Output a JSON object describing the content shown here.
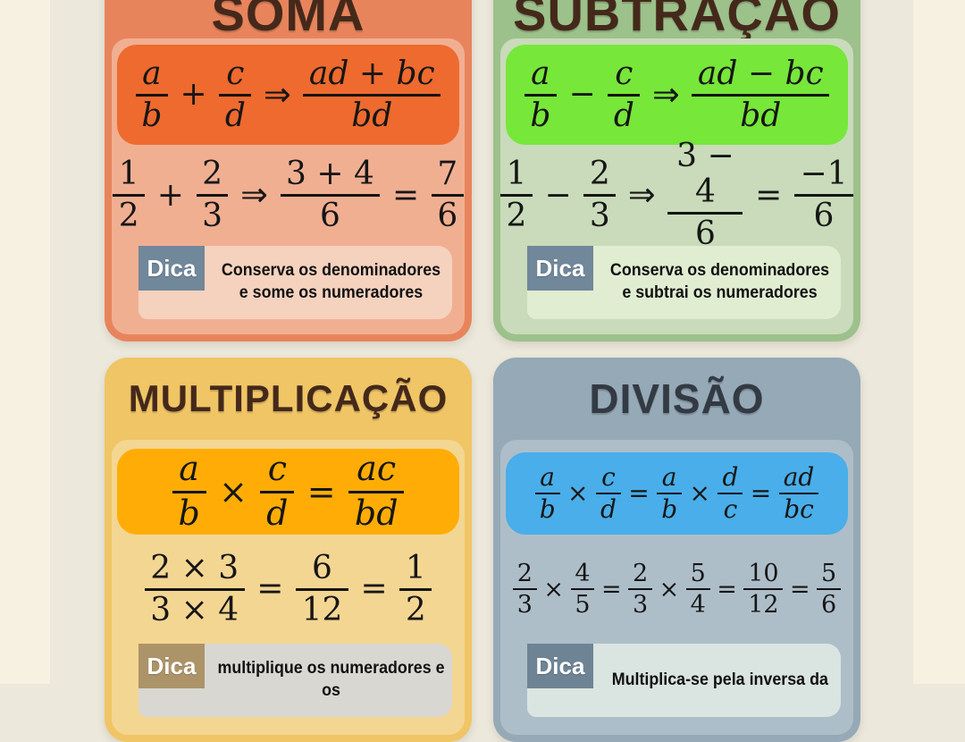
{
  "page": {
    "bg_outer": "#F7F1E1",
    "bg_inner": "#ECE8DB",
    "math_color": "#161616"
  },
  "cards": [
    {
      "title": "SOMA",
      "dica_label": "Dica",
      "dica_text": "Conserva os denominadores e some os numeradores",
      "colors": {
        "header": "#E8845C",
        "body": "#F1AF92",
        "box": "#EE6A2E",
        "panel": "#F5D2BE",
        "badge": "#71879A",
        "title": "#44291B"
      },
      "formula": [
        {
          "t": "frac",
          "n": "a",
          "d": "b",
          "var": true
        },
        {
          "t": "op",
          "v": "+"
        },
        {
          "t": "frac",
          "n": "c",
          "d": "d",
          "var": true
        },
        {
          "t": "arrow"
        },
        {
          "t": "frac",
          "n": "ad + bc",
          "d": "bd",
          "var": true
        }
      ],
      "example": [
        {
          "t": "frac",
          "n": "1",
          "d": "2"
        },
        {
          "t": "op",
          "v": "+"
        },
        {
          "t": "frac",
          "n": "2",
          "d": "3"
        },
        {
          "t": "arrow"
        },
        {
          "t": "frac",
          "n": "3 + 4",
          "d": "6"
        },
        {
          "t": "op",
          "v": "="
        },
        {
          "t": "frac",
          "n": "7",
          "d": "6"
        }
      ]
    },
    {
      "title": "SUBTRAÇÃO",
      "dica_label": "Dica",
      "dica_text": "Conserva os denominadores e subtrai os numeradores",
      "colors": {
        "header": "#9DC18B",
        "body": "#C9DBBA",
        "box": "#77E73A",
        "panel": "#E0EDD1",
        "badge": "#71879A",
        "title": "#44291B"
      },
      "formula": [
        {
          "t": "frac",
          "n": "a",
          "d": "b",
          "var": true
        },
        {
          "t": "op",
          "v": "−"
        },
        {
          "t": "frac",
          "n": "c",
          "d": "d",
          "var": true
        },
        {
          "t": "arrow"
        },
        {
          "t": "frac",
          "n": "ad − bc",
          "d": "bd",
          "var": true
        }
      ],
      "example": [
        {
          "t": "frac",
          "n": "1",
          "d": "2"
        },
        {
          "t": "op",
          "v": "−"
        },
        {
          "t": "frac",
          "n": "2",
          "d": "3"
        },
        {
          "t": "arrow"
        },
        {
          "t": "frac",
          "n": "3 − 4",
          "d": "6"
        },
        {
          "t": "op",
          "v": "="
        },
        {
          "t": "frac",
          "n": "−1",
          "d": "6"
        }
      ]
    },
    {
      "title": "MULTIPLICAÇÃO",
      "dica_label": "Dica",
      "dica_text": "multiplique os numeradores e os",
      "colors": {
        "header": "#F0C565",
        "body": "#F4D693",
        "box": "#FFAD06",
        "panel": "#D8D7D2",
        "badge": "#AC9468",
        "title": "#44291B"
      },
      "formula": [
        {
          "t": "frac",
          "n": "a",
          "d": "b",
          "var": true
        },
        {
          "t": "op",
          "v": "×"
        },
        {
          "t": "frac",
          "n": "c",
          "d": "d",
          "var": true
        },
        {
          "t": "op",
          "v": "="
        },
        {
          "t": "frac",
          "n": "ac",
          "d": "bd",
          "var": true
        }
      ],
      "example": [
        {
          "t": "frac",
          "n": "2 × 3",
          "d": "3 × 4"
        },
        {
          "t": "op",
          "v": "="
        },
        {
          "t": "frac",
          "n": "6",
          "d": "12"
        },
        {
          "t": "op",
          "v": "="
        },
        {
          "t": "frac",
          "n": "1",
          "d": "2"
        }
      ]
    },
    {
      "title": "DIVISÃO",
      "dica_label": "Dica",
      "dica_text": "Multiplica-se pela inversa da",
      "colors": {
        "header": "#95A9B6",
        "body": "#AEBEC9",
        "box": "#49AEE9",
        "panel": "#DAE4E1",
        "badge": "#6E8495",
        "title": "#333A44"
      },
      "formula": [
        {
          "t": "frac",
          "n": "a",
          "d": "b",
          "var": true
        },
        {
          "t": "op",
          "v": "×"
        },
        {
          "t": "frac",
          "n": "c",
          "d": "d",
          "var": true
        },
        {
          "t": "op",
          "v": "="
        },
        {
          "t": "frac",
          "n": "a",
          "d": "b",
          "var": true
        },
        {
          "t": "op",
          "v": "×"
        },
        {
          "t": "frac",
          "n": "d",
          "d": "c",
          "var": true
        },
        {
          "t": "op",
          "v": "="
        },
        {
          "t": "frac",
          "n": "ad",
          "d": "bc",
          "var": true
        }
      ],
      "example": [
        {
          "t": "frac",
          "n": "2",
          "d": "3"
        },
        {
          "t": "op",
          "v": "×"
        },
        {
          "t": "frac",
          "n": "4",
          "d": "5"
        },
        {
          "t": "op",
          "v": "="
        },
        {
          "t": "frac",
          "n": "2",
          "d": "3"
        },
        {
          "t": "op",
          "v": "×"
        },
        {
          "t": "frac",
          "n": "5",
          "d": "4"
        },
        {
          "t": "op",
          "v": "="
        },
        {
          "t": "frac",
          "n": "10",
          "d": "12"
        },
        {
          "t": "op",
          "v": "="
        },
        {
          "t": "frac",
          "n": "5",
          "d": "6"
        }
      ]
    }
  ]
}
